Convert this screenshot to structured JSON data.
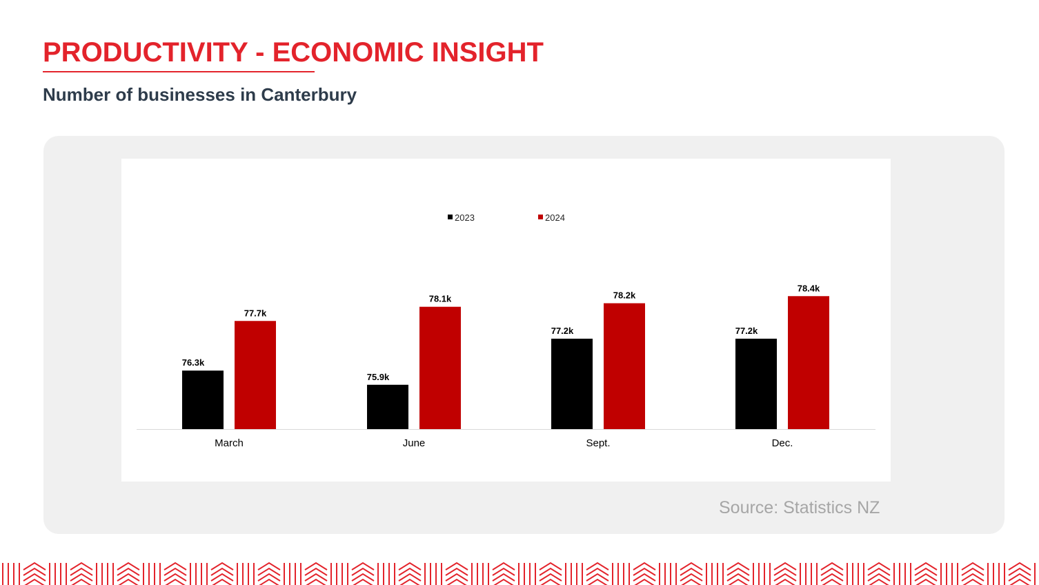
{
  "header": {
    "title": "PRODUCTIVITY - ECONOMIC INSIGHT",
    "subtitle": "Number of businesses in Canterbury"
  },
  "source": "Source: Statistics NZ",
  "colors": {
    "title_red": "#e3232b",
    "subtitle_navy": "#2e3c4b",
    "series_2023": "#000000",
    "series_2024": "#c00000",
    "panel_bg": "#f0f0f0",
    "source_gray": "#a6a6a6"
  },
  "chart_data": {
    "type": "bar",
    "title": "",
    "xlabel": "",
    "ylabel": "",
    "categories": [
      "March",
      "June",
      "Sept.",
      "Dec."
    ],
    "series": [
      {
        "name": "2023",
        "color": "#000000",
        "values": [
          76.3,
          75.9,
          77.2,
          77.2
        ],
        "labels": [
          "76.3k",
          "75.9k",
          "77.2k",
          "77.2k"
        ]
      },
      {
        "name": "2024",
        "color": "#c00000",
        "values": [
          77.7,
          78.1,
          78.2,
          78.4
        ],
        "labels": [
          "77.7k",
          "78.1k",
          "78.2k",
          "78.4k"
        ]
      }
    ],
    "unit": "thousands",
    "ylim": [
      74.65,
      78.6
    ],
    "grid": false,
    "y_axis_visible": false,
    "legend_position": "top-center"
  }
}
